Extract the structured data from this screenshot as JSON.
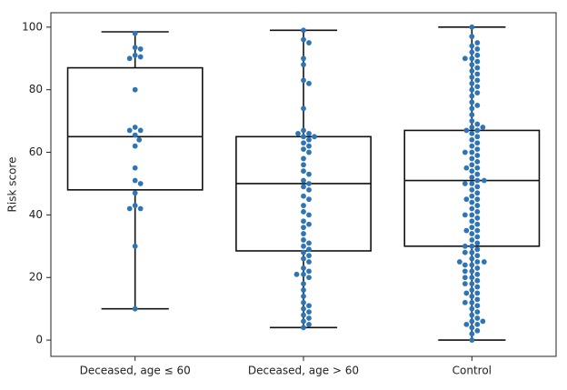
{
  "chart_data": {
    "type": "box-swarm",
    "ylabel": "Risk score",
    "categories": [
      "Deceased, age ≤ 60",
      "Deceased, age > 60",
      "Control"
    ],
    "boxes": [
      {
        "whislo": 10,
        "q1": 48,
        "med": 65,
        "q3": 87,
        "whishi": 98.5
      },
      {
        "whislo": 4,
        "q1": 28.5,
        "med": 50,
        "q3": 65,
        "whishi": 99
      },
      {
        "whislo": 0,
        "q1": 30,
        "med": 51,
        "q3": 67,
        "whishi": 100
      }
    ],
    "points": [
      [
        98,
        93.5,
        93,
        91,
        90.5,
        90,
        80,
        68,
        67,
        67,
        65.5,
        64,
        62,
        55,
        51,
        50,
        47,
        43,
        42,
        42,
        30,
        10
      ],
      [
        99,
        96,
        95,
        90,
        88,
        83,
        82,
        74,
        67,
        66,
        66,
        65,
        65,
        64,
        63,
        62,
        61,
        60,
        58,
        56,
        54,
        53,
        51,
        50,
        49,
        48,
        46,
        45,
        43,
        41,
        40,
        38,
        37,
        36,
        34,
        32,
        31,
        30,
        29,
        28,
        27,
        26,
        25,
        23,
        22,
        21,
        21,
        20,
        18,
        16,
        14,
        12,
        11,
        10,
        9,
        8,
        7,
        6,
        5,
        4
      ],
      [
        0,
        2,
        3,
        4,
        5,
        5,
        6,
        6,
        7,
        8,
        9,
        10,
        11,
        12,
        12,
        13,
        14,
        15,
        15,
        16,
        17,
        18,
        18,
        19,
        20,
        20,
        21,
        22,
        22,
        23,
        24,
        24,
        25,
        25,
        25,
        26,
        27,
        28,
        28,
        29,
        30,
        30,
        31,
        32,
        33,
        34,
        35,
        35,
        36,
        37,
        38,
        39,
        40,
        40,
        41,
        42,
        43,
        44,
        45,
        45,
        46,
        47,
        48,
        49,
        50,
        50,
        51,
        51,
        52,
        53,
        54,
        55,
        55,
        56,
        57,
        58,
        59,
        60,
        60,
        61,
        62,
        63,
        64,
        65,
        66,
        67,
        67,
        68,
        68,
        69,
        70,
        72,
        74,
        75,
        76,
        78,
        79,
        80,
        81,
        82,
        83,
        84,
        85,
        86,
        87,
        88,
        89,
        90,
        90,
        91,
        92,
        93,
        94,
        95,
        97,
        100
      ]
    ],
    "color": "#2f74b5",
    "ylim": [
      -5.2,
      104.6
    ],
    "yticks": [
      0,
      20,
      40,
      60,
      80,
      100
    ]
  }
}
